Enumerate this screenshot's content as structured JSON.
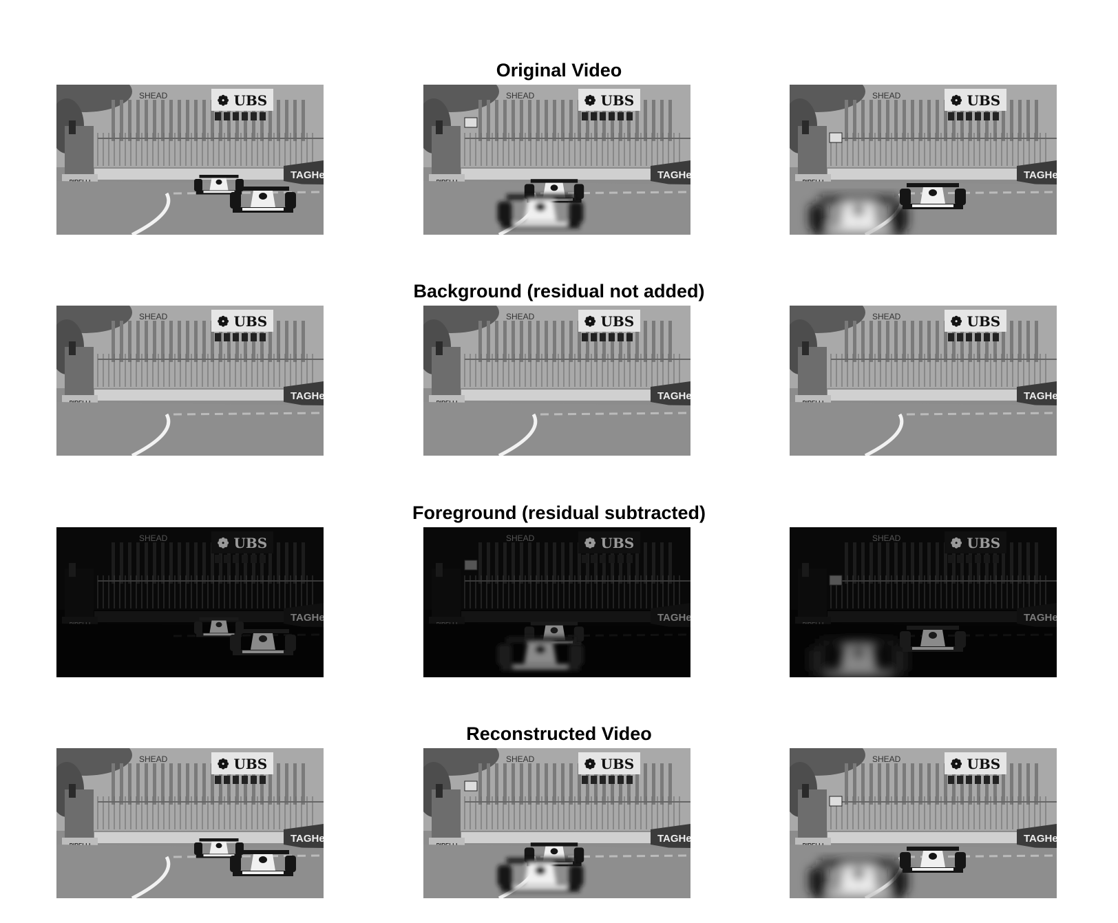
{
  "rows": [
    {
      "title": "Original Video",
      "kind": "orig"
    },
    {
      "title": "Background (residual not added)",
      "kind": "bg"
    },
    {
      "title": "Foreground (residual subtracted)",
      "kind": "fg"
    },
    {
      "title": "Reconstructed Video",
      "kind": "orig"
    }
  ],
  "signage": {
    "bank": "UBS",
    "watch": "TAGHeu",
    "tyre": "PIRELLI",
    "pit": "SHEAD"
  }
}
